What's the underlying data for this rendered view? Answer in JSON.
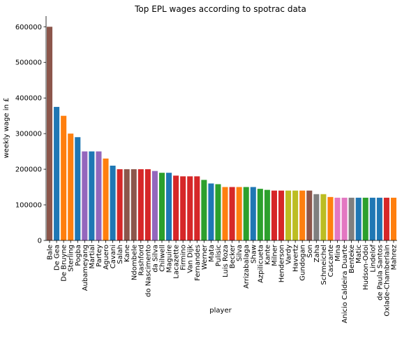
{
  "chart_data": {
    "type": "bar",
    "title": "Top EPL wages according to spotrac data",
    "xlabel": "player",
    "ylabel": "weekly wage in £",
    "ylim": [
      0,
      630000
    ],
    "yticks": [
      0,
      100000,
      200000,
      300000,
      400000,
      500000,
      600000
    ],
    "grid": false,
    "categories": [
      "Bale",
      "De Gea",
      "De Bruyne",
      "Sterling",
      "Pogba",
      "Aubameyang",
      "Martial",
      "Partey",
      "Aguero",
      "Cavani",
      "Salah",
      "Kane",
      "Ndombele",
      "Rashford",
      "do Nascimento",
      "da Silva",
      "Chilwell",
      "Maguire",
      "Lacazette",
      "Firmino",
      "Van Dijk",
      "Fernandes",
      "Werner",
      "Mata",
      "Pulisic",
      "Luis Roza",
      "Becker",
      "Silva",
      "Arrizabalaga",
      "Shaw",
      "Azpilicueta",
      "Kante",
      "Milner",
      "Henderson",
      "Vardy",
      "Havertz",
      "Gundogan",
      "Son",
      "Zaha",
      "Schmeichel",
      "Cascante",
      "Mina",
      "Anicio Caldeira Duarte",
      "Benteke",
      "Matic",
      "Hudson-Odoi",
      "Lindelof",
      "de Paula Santos",
      "Oxlade-Chamberlain",
      "Mahrez"
    ],
    "values": [
      600000,
      375000,
      350000,
      300000,
      290000,
      250000,
      250000,
      250000,
      230000,
      210000,
      200000,
      200000,
      200000,
      200000,
      200000,
      195000,
      190000,
      190000,
      182000,
      180000,
      180000,
      180000,
      170000,
      160000,
      158000,
      150000,
      150000,
      150000,
      150000,
      150000,
      145000,
      142000,
      140000,
      140000,
      140000,
      140000,
      140000,
      140000,
      130000,
      130000,
      122000,
      120000,
      120000,
      120000,
      120000,
      120000,
      120000,
      120000,
      120000,
      120000
    ],
    "colors": [
      "#8c564b",
      "#1f77b4",
      "#ff7f0e",
      "#ff7f0e",
      "#1f77b4",
      "#9467bd",
      "#1f77b4",
      "#9467bd",
      "#ff7f0e",
      "#1f77b4",
      "#d62728",
      "#8c564b",
      "#8c564b",
      "#d62728",
      "#d62728",
      "#9467bd",
      "#2ca02c",
      "#1f77b4",
      "#d62728",
      "#d62728",
      "#d62728",
      "#d62728",
      "#2ca02c",
      "#1f77b4",
      "#2ca02c",
      "#ff7f0e",
      "#d62728",
      "#ff7f0e",
      "#2ca02c",
      "#1f77b4",
      "#2ca02c",
      "#2ca02c",
      "#d62728",
      "#d62728",
      "#bcbd22",
      "#bcbd22",
      "#ff7f0e",
      "#8c564b",
      "#7f7f7f",
      "#bcbd22",
      "#ff7f0e",
      "#e377c2",
      "#e377c2",
      "#7f7f7f",
      "#1f77b4",
      "#2ca02c",
      "#1f77b4",
      "#1f77b4",
      "#d62728",
      "#ff7f0e"
    ]
  }
}
